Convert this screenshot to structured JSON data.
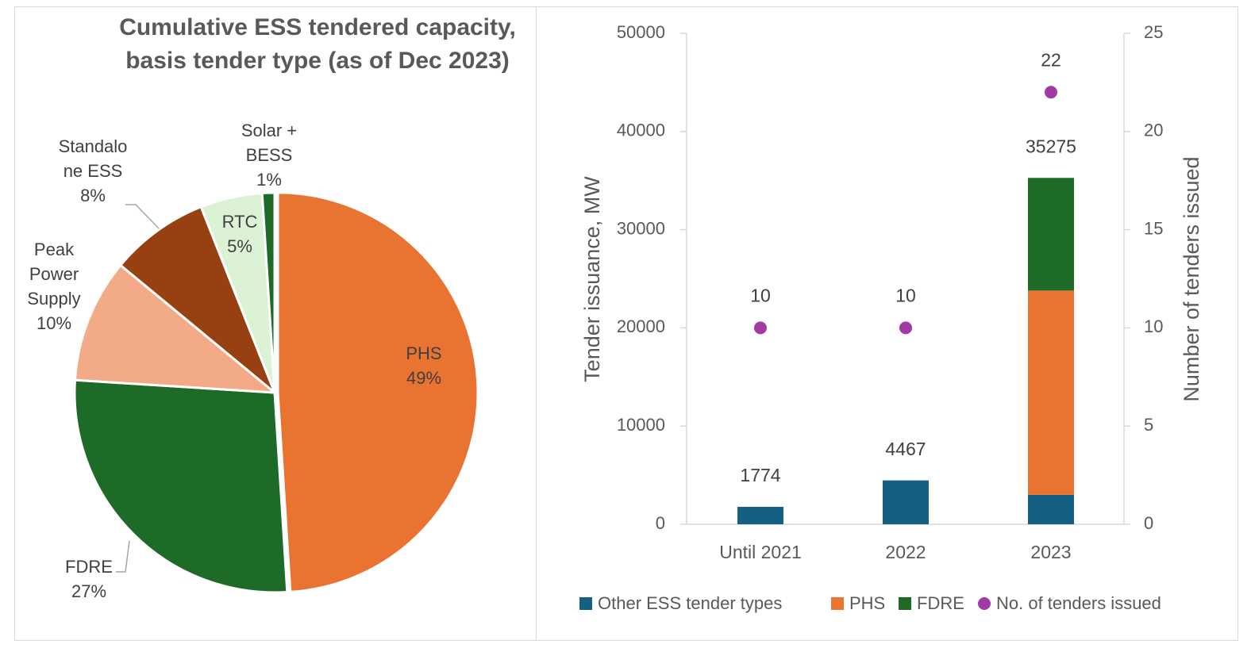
{
  "colors": {
    "phs": "#e97331",
    "fdre": "#1d6b27",
    "peak": "#f2ab86",
    "standalone": "#974012",
    "rtc": "#dbf2d4",
    "solar": "#1d6b27",
    "other": "#156082",
    "tenders": "#a23aa6",
    "text": "#404040",
    "axis": "#595959",
    "border": "#d9d9d9"
  },
  "chart_data": [
    {
      "type": "pie",
      "title": "Cumulative ESS tendered capacity, basis tender type (as of Dec 2023)",
      "slices": [
        {
          "label": "PHS",
          "percent": 49,
          "percent_label": "49%",
          "color_key": "phs"
        },
        {
          "label": "FDRE",
          "percent": 27,
          "percent_label": "27%",
          "color_key": "fdre"
        },
        {
          "label": "Peak Power Supply",
          "percent": 10,
          "percent_label": "10%",
          "color_key": "peak"
        },
        {
          "label": "Standalone ESS",
          "percent": 8,
          "percent_label": "8%",
          "color_key": "standalone"
        },
        {
          "label": "RTC",
          "percent": 5,
          "percent_label": "5%",
          "color_key": "rtc"
        },
        {
          "label": "Solar + BESS",
          "percent": 1,
          "percent_label": "1%",
          "color_key": "solar"
        }
      ],
      "label_lines": {
        "phs": [
          "PHS",
          "49%"
        ],
        "fdre": [
          "FDRE",
          "27%"
        ],
        "peak": [
          "Peak",
          "Power",
          "Supply",
          "10%"
        ],
        "standalone": [
          "Standalo",
          "ne ESS",
          "8%"
        ],
        "rtc": [
          "RTC",
          "5%"
        ],
        "solar": [
          "Solar +",
          "BESS",
          "1%"
        ]
      }
    },
    {
      "type": "bar",
      "stacked": true,
      "categories": [
        "Until 2021",
        "2022",
        "2023"
      ],
      "series": [
        {
          "name": "Other ESS tender types",
          "values": [
            1774,
            4467,
            3000
          ],
          "color_key": "other"
        },
        {
          "name": "PHS",
          "values": [
            0,
            0,
            20800
          ],
          "color_key": "phs"
        },
        {
          "name": "FDRE",
          "values": [
            0,
            0,
            11475
          ],
          "color_key": "fdre"
        }
      ],
      "totals": [
        1774,
        4467,
        35275
      ],
      "total_labels": [
        "1774",
        "4467",
        "35275"
      ],
      "secondary_series": {
        "name": "No. of tenders issued",
        "type": "scatter",
        "values": [
          10,
          10,
          22
        ],
        "labels": [
          "10",
          "10",
          "22"
        ],
        "color_key": "tenders"
      },
      "ylabel": "Tender issuance, MW",
      "y2label": "Number of tenders issued",
      "ylim": [
        0,
        50000
      ],
      "y2lim": [
        0,
        25
      ],
      "yticks": [
        "0",
        "10000",
        "20000",
        "30000",
        "40000",
        "50000"
      ],
      "y2ticks": [
        "0",
        "5",
        "10",
        "15",
        "20",
        "25"
      ],
      "legend": "bottom"
    }
  ]
}
